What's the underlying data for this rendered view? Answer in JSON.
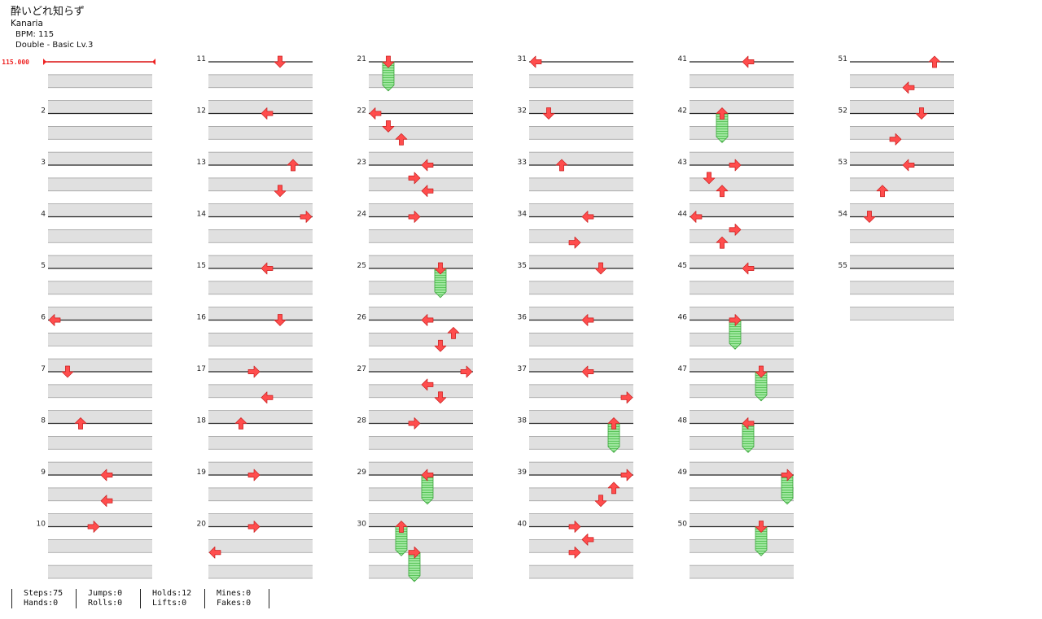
{
  "song": {
    "title": "酔いどれ知らず",
    "artist": "Kanaria",
    "bpm": "BPM: 115",
    "difficulty": "Double - Basic Lv.3"
  },
  "bpm_marker": "115.000",
  "colors": {
    "arrow": "#ff4d4d",
    "arrow_outline": "#c81e1e",
    "hold_fill": "#9ee69e",
    "hold_stripe": "#5cc65c",
    "hold_border": "#3aa33a",
    "band": "#e0e0e0",
    "band_border": "#9a9a9a",
    "bpm_line": "#ee2222"
  },
  "measures": [
    {
      "n": 1,
      "label": "",
      "notes": []
    },
    {
      "n": 2,
      "label": "2",
      "notes": []
    },
    {
      "n": 3,
      "label": "3",
      "notes": []
    },
    {
      "n": 4,
      "label": "4",
      "notes": []
    },
    {
      "n": 5,
      "label": "5",
      "notes": []
    },
    {
      "n": 6,
      "label": "6",
      "notes": [
        {
          "lane": 0,
          "beat": 0,
          "dir": "left"
        }
      ]
    },
    {
      "n": 7,
      "label": "7",
      "notes": [
        {
          "lane": 1,
          "beat": 0,
          "dir": "down"
        }
      ]
    },
    {
      "n": 8,
      "label": "8",
      "notes": [
        {
          "lane": 2,
          "beat": 0,
          "dir": "up"
        }
      ]
    },
    {
      "n": 9,
      "label": "9",
      "notes": [
        {
          "lane": 4,
          "beat": 0,
          "dir": "left"
        },
        {
          "lane": 4,
          "beat": 2,
          "dir": "left"
        }
      ]
    },
    {
      "n": 10,
      "label": "10",
      "notes": [
        {
          "lane": 3,
          "beat": 0,
          "dir": "right"
        }
      ]
    },
    {
      "n": 11,
      "label": "11",
      "notes": [
        {
          "lane": 5,
          "beat": 0,
          "dir": "down"
        }
      ]
    },
    {
      "n": 12,
      "label": "12",
      "notes": [
        {
          "lane": 4,
          "beat": 0,
          "dir": "left"
        }
      ]
    },
    {
      "n": 13,
      "label": "13",
      "notes": [
        {
          "lane": 6,
          "beat": 0,
          "dir": "up"
        },
        {
          "lane": 5,
          "beat": 2,
          "dir": "down"
        }
      ]
    },
    {
      "n": 14,
      "label": "14",
      "notes": [
        {
          "lane": 7,
          "beat": 0,
          "dir": "right"
        }
      ]
    },
    {
      "n": 15,
      "label": "15",
      "notes": [
        {
          "lane": 4,
          "beat": 0,
          "dir": "left"
        }
      ]
    },
    {
      "n": 16,
      "label": "16",
      "notes": [
        {
          "lane": 5,
          "beat": 0,
          "dir": "down"
        }
      ]
    },
    {
      "n": 17,
      "label": "17",
      "notes": [
        {
          "lane": 3,
          "beat": 0,
          "dir": "right"
        },
        {
          "lane": 4,
          "beat": 2,
          "dir": "left"
        }
      ]
    },
    {
      "n": 18,
      "label": "18",
      "notes": [
        {
          "lane": 2,
          "beat": 0,
          "dir": "up"
        }
      ]
    },
    {
      "n": 19,
      "label": "19",
      "notes": [
        {
          "lane": 3,
          "beat": 0,
          "dir": "right"
        }
      ]
    },
    {
      "n": 20,
      "label": "20",
      "notes": [
        {
          "lane": 3,
          "beat": 0,
          "dir": "right"
        },
        {
          "lane": 0,
          "beat": 2,
          "dir": "left"
        }
      ]
    },
    {
      "n": 21,
      "label": "21",
      "notes": [
        {
          "lane": 1,
          "beat": 0,
          "dir": "down",
          "hold": 2
        }
      ]
    },
    {
      "n": 22,
      "label": "22",
      "notes": [
        {
          "lane": 0,
          "beat": 0,
          "dir": "left"
        },
        {
          "lane": 1,
          "beat": 1,
          "dir": "down"
        },
        {
          "lane": 2,
          "beat": 2,
          "dir": "up"
        }
      ]
    },
    {
      "n": 23,
      "label": "23",
      "notes": [
        {
          "lane": 4,
          "beat": 0,
          "dir": "left"
        },
        {
          "lane": 3,
          "beat": 1,
          "dir": "right"
        },
        {
          "lane": 4,
          "beat": 2,
          "dir": "left"
        }
      ]
    },
    {
      "n": 24,
      "label": "24",
      "notes": [
        {
          "lane": 3,
          "beat": 0,
          "dir": "right"
        }
      ]
    },
    {
      "n": 25,
      "label": "25",
      "notes": [
        {
          "lane": 5,
          "beat": 0,
          "dir": "down",
          "hold": 2
        }
      ]
    },
    {
      "n": 26,
      "label": "26",
      "notes": [
        {
          "lane": 4,
          "beat": 0,
          "dir": "left"
        },
        {
          "lane": 6,
          "beat": 1,
          "dir": "up"
        },
        {
          "lane": 5,
          "beat": 2,
          "dir": "down"
        }
      ]
    },
    {
      "n": 27,
      "label": "27",
      "notes": [
        {
          "lane": 7,
          "beat": 0,
          "dir": "right"
        },
        {
          "lane": 4,
          "beat": 1,
          "dir": "left"
        },
        {
          "lane": 5,
          "beat": 2,
          "dir": "down"
        }
      ]
    },
    {
      "n": 28,
      "label": "28",
      "notes": [
        {
          "lane": 3,
          "beat": 0,
          "dir": "right"
        }
      ]
    },
    {
      "n": 29,
      "label": "29",
      "notes": [
        {
          "lane": 4,
          "beat": 0,
          "dir": "left",
          "hold": 2
        }
      ]
    },
    {
      "n": 30,
      "label": "30",
      "notes": [
        {
          "lane": 2,
          "beat": 0,
          "dir": "up",
          "hold": 2
        },
        {
          "lane": 3,
          "beat": 2,
          "dir": "right",
          "hold": 2
        }
      ]
    },
    {
      "n": 31,
      "label": "31",
      "notes": [
        {
          "lane": 0,
          "beat": 0,
          "dir": "left"
        }
      ]
    },
    {
      "n": 32,
      "label": "32",
      "notes": [
        {
          "lane": 1,
          "beat": 0,
          "dir": "down"
        }
      ]
    },
    {
      "n": 33,
      "label": "33",
      "notes": [
        {
          "lane": 2,
          "beat": 0,
          "dir": "up"
        }
      ]
    },
    {
      "n": 34,
      "label": "34",
      "notes": [
        {
          "lane": 4,
          "beat": 0,
          "dir": "left"
        },
        {
          "lane": 3,
          "beat": 2,
          "dir": "right"
        }
      ]
    },
    {
      "n": 35,
      "label": "35",
      "notes": [
        {
          "lane": 5,
          "beat": 0,
          "dir": "down"
        }
      ]
    },
    {
      "n": 36,
      "label": "36",
      "notes": [
        {
          "lane": 4,
          "beat": 0,
          "dir": "left"
        }
      ]
    },
    {
      "n": 37,
      "label": "37",
      "notes": [
        {
          "lane": 4,
          "beat": 0,
          "dir": "left"
        },
        {
          "lane": 7,
          "beat": 2,
          "dir": "right"
        }
      ]
    },
    {
      "n": 38,
      "label": "38",
      "notes": [
        {
          "lane": 6,
          "beat": 0,
          "dir": "up",
          "hold": 2
        }
      ]
    },
    {
      "n": 39,
      "label": "39",
      "notes": [
        {
          "lane": 7,
          "beat": 0,
          "dir": "right"
        },
        {
          "lane": 6,
          "beat": 1,
          "dir": "up"
        },
        {
          "lane": 5,
          "beat": 2,
          "dir": "down"
        }
      ]
    },
    {
      "n": 40,
      "label": "40",
      "notes": [
        {
          "lane": 3,
          "beat": 0,
          "dir": "right"
        },
        {
          "lane": 4,
          "beat": 1,
          "dir": "left"
        },
        {
          "lane": 3,
          "beat": 2,
          "dir": "right"
        }
      ]
    },
    {
      "n": 41,
      "label": "41",
      "notes": [
        {
          "lane": 4,
          "beat": 0,
          "dir": "left"
        }
      ]
    },
    {
      "n": 42,
      "label": "42",
      "notes": [
        {
          "lane": 2,
          "beat": 0,
          "dir": "up",
          "hold": 2
        }
      ]
    },
    {
      "n": 43,
      "label": "43",
      "notes": [
        {
          "lane": 3,
          "beat": 0,
          "dir": "right"
        },
        {
          "lane": 1,
          "beat": 1,
          "dir": "down"
        },
        {
          "lane": 2,
          "beat": 2,
          "dir": "up"
        }
      ]
    },
    {
      "n": 44,
      "label": "44",
      "notes": [
        {
          "lane": 0,
          "beat": 0,
          "dir": "left"
        },
        {
          "lane": 3,
          "beat": 1,
          "dir": "right"
        },
        {
          "lane": 2,
          "beat": 2,
          "dir": "up"
        }
      ]
    },
    {
      "n": 45,
      "label": "45",
      "notes": [
        {
          "lane": 4,
          "beat": 0,
          "dir": "left"
        }
      ]
    },
    {
      "n": 46,
      "label": "46",
      "notes": [
        {
          "lane": 3,
          "beat": 0,
          "dir": "right",
          "hold": 2
        }
      ]
    },
    {
      "n": 47,
      "label": "47",
      "notes": [
        {
          "lane": 5,
          "beat": 0,
          "dir": "down",
          "hold": 2
        }
      ]
    },
    {
      "n": 48,
      "label": "48",
      "notes": [
        {
          "lane": 4,
          "beat": 0,
          "dir": "left",
          "hold": 2
        }
      ]
    },
    {
      "n": 49,
      "label": "49",
      "notes": [
        {
          "lane": 7,
          "beat": 0,
          "dir": "right",
          "hold": 2
        }
      ]
    },
    {
      "n": 50,
      "label": "50",
      "notes": [
        {
          "lane": 5,
          "beat": 0,
          "dir": "down",
          "hold": 2
        }
      ]
    },
    {
      "n": 51,
      "label": "51",
      "notes": [
        {
          "lane": 6,
          "beat": 0,
          "dir": "up"
        },
        {
          "lane": 4,
          "beat": 2,
          "dir": "left"
        }
      ]
    },
    {
      "n": 52,
      "label": "52",
      "notes": [
        {
          "lane": 5,
          "beat": 0,
          "dir": "down"
        },
        {
          "lane": 3,
          "beat": 2,
          "dir": "right"
        }
      ]
    },
    {
      "n": 53,
      "label": "53",
      "notes": [
        {
          "lane": 4,
          "beat": 0,
          "dir": "left"
        },
        {
          "lane": 2,
          "beat": 2,
          "dir": "up"
        }
      ]
    },
    {
      "n": 54,
      "label": "54",
      "notes": [
        {
          "lane": 1,
          "beat": 0,
          "dir": "down"
        }
      ]
    },
    {
      "n": 55,
      "label": "55",
      "notes": []
    }
  ],
  "stats": [
    {
      "line1": "Steps:75",
      "line2": "Hands:0"
    },
    {
      "line1": "Jumps:0",
      "line2": "Rolls:0"
    },
    {
      "line1": "Holds:12",
      "line2": "Lifts:0"
    },
    {
      "line1": "Mines:0",
      "line2": "Fakes:0"
    }
  ]
}
